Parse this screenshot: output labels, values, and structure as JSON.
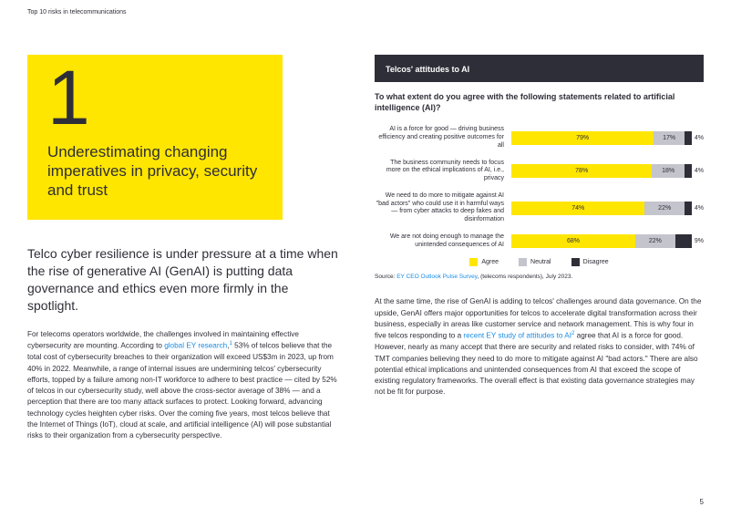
{
  "topbar": {
    "text": "Top 10 risks in telecommunications"
  },
  "yellow_box": {
    "number": "1",
    "heading": "Underestimating changing imperatives in privacy, security and trust"
  },
  "intro": "Telco cyber resilience is under pressure at a time when the rise of generative AI (GenAI) is putting data governance and ethics even more firmly in the spotlight.",
  "left_body": {
    "pre": "For telecoms operators worldwide, the challenges involved in maintaining effective cybersecurity are mounting. According to ",
    "link": "global EY research",
    "sup": "1",
    "post": " 53% of telcos believe that the total cost of cybersecurity breaches to their organization will exceed US$3m in 2023, up from 40% in 2022. Meanwhile, a range of internal issues are undermining telcos' cybersecurity efforts, topped by a failure among non-IT workforce to adhere to best practice — cited by 52% of telcos in our cybersecurity study, well above the cross-sector average of 38% — and a perception that there are too many attack surfaces to protect. Looking forward, advancing technology cycles heighten cyber risks. Over the coming five years, most telcos believe that the Internet of Things (IoT), cloud at scale, and artificial intelligence (AI) will pose substantial risks to their organization from a cybersecurity perspective."
  },
  "chart": {
    "title": "Telcos' attitudes to AI",
    "subtitle": "To what extent do you agree with the following statements related to artificial intelligence (AI)?",
    "colors": {
      "agree": "#ffe600",
      "neutral": "#c4c4cd",
      "disagree": "#2e2e38"
    },
    "legend": {
      "agree": "Agree",
      "neutral": "Neutral",
      "disagree": "Disagree"
    },
    "rows": [
      {
        "label": "AI is a force for good — driving business efficiency and creating positive outcomes for all",
        "agree": 79,
        "neutral": 17,
        "disagree": 4
      },
      {
        "label": "The business community needs to focus more on the ethical implications of AI, i.e., privacy",
        "agree": 78,
        "neutral": 18,
        "disagree": 4
      },
      {
        "label": "We need to do more to mitigate against AI \"bad actors\" who could use it in harmful ways — from cyber attacks to deep fakes and disinformation",
        "agree": 74,
        "neutral": 22,
        "disagree": 4
      },
      {
        "label": "We are not doing enough to manage the unintended consequences of AI",
        "agree": 68,
        "neutral": 22,
        "disagree": 9
      }
    ],
    "source_pre": "Source: ",
    "source_link": "EY CEO Outlook Pulse Survey",
    "source_post": ", (telecoms respondents), July 2023."
  },
  "right_body": {
    "pre": "At the same time, the rise of GenAI is adding to telcos' challenges around data governance. On the upside, GenAI offers major opportunities for telcos to accelerate digital transformation across their business, especially in areas like customer service and network management. This is why four in five telcos responding to a ",
    "link": "recent EY study of attitudes to AI",
    "sup": "2",
    "post": " agree that AI is a force for good. However, nearly as many accept that there are security and related risks to consider, with 74% of TMT companies believing they need to do more to mitigate against AI \"bad actors.\" There are also potential ethical implications and unintended consequences from AI that exceed the scope of existing regulatory frameworks. The overall effect is that existing data governance strategies may not be fit for purpose."
  },
  "page_number": "5"
}
